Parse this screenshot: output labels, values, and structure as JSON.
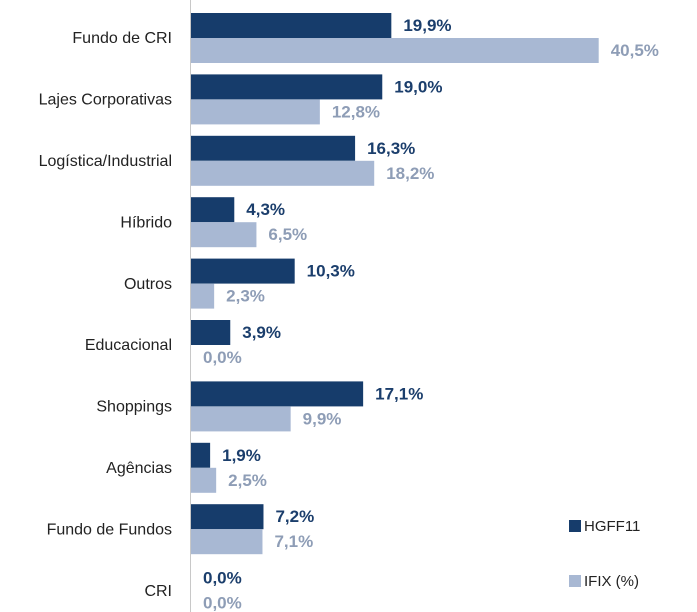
{
  "chart_data": {
    "type": "bar",
    "orientation": "horizontal",
    "categories": [
      "Fundo de CRI",
      "Lajes Corporativas",
      "Logística/Industrial",
      "Híbrido",
      "Outros",
      "Educacional",
      "Shoppings",
      "Agências",
      "Fundo de Fundos",
      "CRI"
    ],
    "series": [
      {
        "name": "HGFF11",
        "color": "#163c6b",
        "label_color": "#1b3e6c",
        "values": [
          19.9,
          19.0,
          16.3,
          4.3,
          10.3,
          3.9,
          17.1,
          1.9,
          7.2,
          0.0
        ],
        "value_labels": [
          "19,9%",
          "19,0%",
          "16,3%",
          "4,3%",
          "10,3%",
          "3,9%",
          "17,1%",
          "1,9%",
          "7,2%",
          "0,0%"
        ]
      },
      {
        "name": "IFIX (%)",
        "color": "#a8b8d3",
        "label_color": "#8e9db6",
        "values": [
          40.5,
          12.8,
          18.2,
          6.5,
          2.3,
          0.0,
          9.9,
          2.5,
          7.1,
          0.0
        ],
        "value_labels": [
          "40,5%",
          "12,8%",
          "18,2%",
          "6,5%",
          "2,3%",
          "0,0%",
          "9,9%",
          "2,5%",
          "7,1%",
          "0,0%"
        ]
      }
    ],
    "xlim": [
      0,
      45
    ],
    "legend": "lower right"
  }
}
